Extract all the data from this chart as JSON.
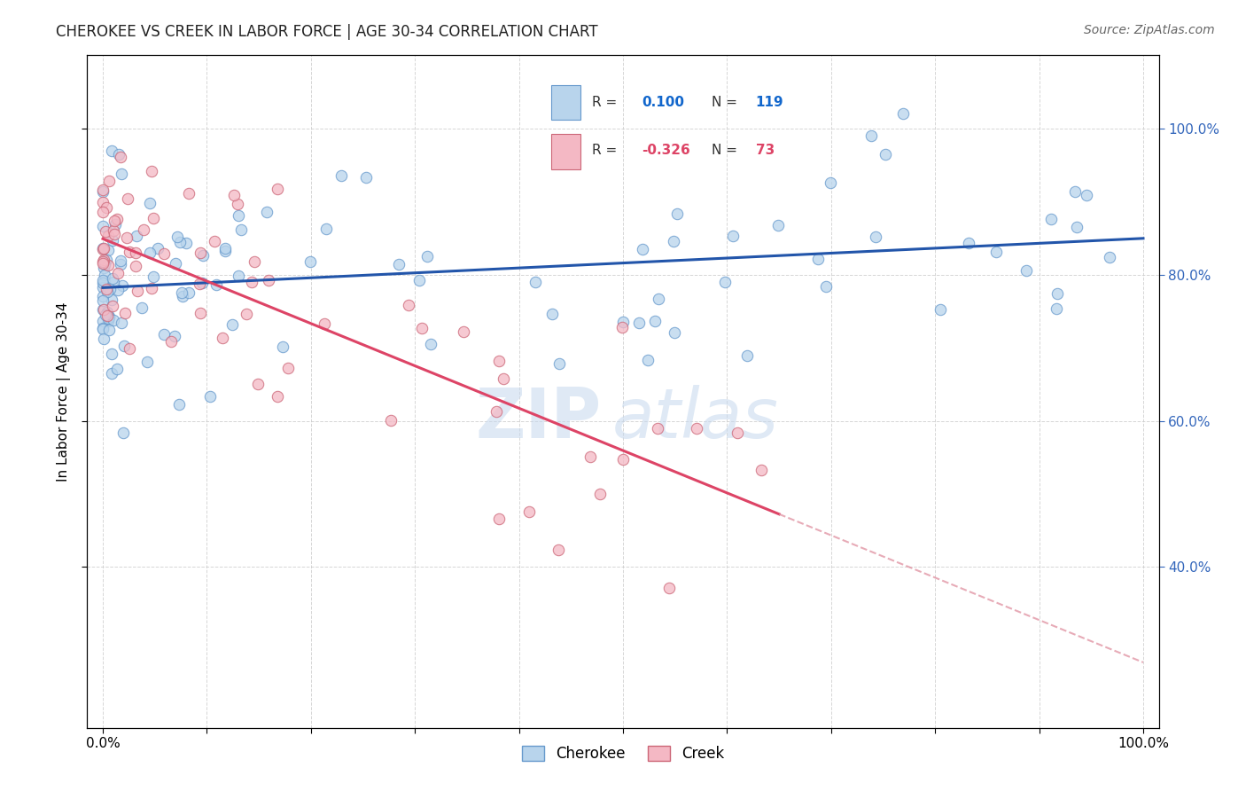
{
  "title": "CHEROKEE VS CREEK IN LABOR FORCE | AGE 30-34 CORRELATION CHART",
  "source": "Source: ZipAtlas.com",
  "ylabel": "In Labor Force | Age 30-34",
  "cherokee_R": 0.1,
  "cherokee_N": 119,
  "creek_R": -0.326,
  "creek_N": 73,
  "cherokee_color": "#b8d4ec",
  "cherokee_edge": "#6699cc",
  "creek_color": "#f4b8c4",
  "creek_edge": "#cc6677",
  "cherokee_line_color": "#2255aa",
  "creek_line_color": "#dd4466",
  "creek_dash_color": "#dd8899",
  "watermark_zip": "ZIP",
  "watermark_atlas": "atlas",
  "background_color": "#ffffff",
  "grid_color": "#cccccc",
  "marker_size": 80,
  "xlim": [
    -0.015,
    1.015
  ],
  "ylim": [
    0.18,
    1.1
  ]
}
